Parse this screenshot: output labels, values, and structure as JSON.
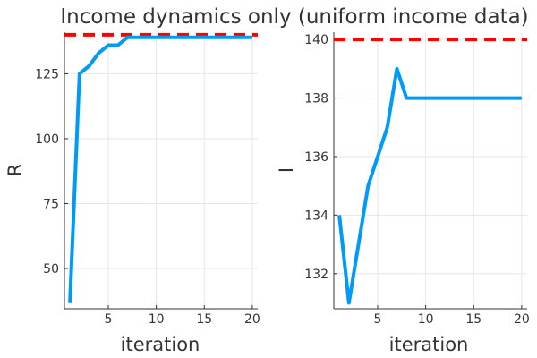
{
  "chart_data": {
    "title": "Income dynamics only (uniform income data)",
    "panels": [
      {
        "type": "line",
        "xlabel": "iteration",
        "ylabel": "R",
        "xlim": [
          0.43,
          20.57
        ],
        "ylim": [
          34.5,
          141
        ],
        "xticks": [
          5,
          10,
          15,
          20
        ],
        "yticks": [
          50,
          75,
          100,
          125
        ],
        "grid": true,
        "reference_line": {
          "y": 140,
          "color": "#ff0000",
          "style": "dashed"
        },
        "series": [
          {
            "color": "#009af9",
            "x": [
              1,
              2,
              3,
              4,
              5,
              6,
              7,
              8,
              9,
              10,
              11,
              12,
              13,
              14,
              15,
              16,
              17,
              18,
              19,
              20
            ],
            "values": [
              37,
              125,
              128,
              133,
              136,
              136,
              139,
              139,
              139,
              139,
              139,
              139,
              139,
              139,
              139,
              139,
              139,
              139,
              139,
              139
            ]
          }
        ]
      },
      {
        "type": "line",
        "xlabel": "iteration",
        "ylabel": "I",
        "xlim": [
          0.43,
          20.57
        ],
        "ylim": [
          130.8,
          140.25
        ],
        "xticks": [
          5,
          10,
          15,
          20
        ],
        "yticks": [
          132,
          134,
          136,
          138,
          140
        ],
        "grid": true,
        "reference_line": {
          "y": 140,
          "color": "#ff0000",
          "style": "dashed"
        },
        "series": [
          {
            "color": "#009af9",
            "x": [
              1,
              2,
              3,
              4,
              5,
              6,
              7,
              8,
              9,
              10,
              11,
              12,
              13,
              14,
              15,
              16,
              17,
              18,
              19,
              20
            ],
            "values": [
              134,
              131,
              133,
              135,
              136,
              137,
              139,
              138,
              138,
              138,
              138,
              138,
              138,
              138,
              138,
              138,
              138,
              138,
              138,
              138
            ]
          }
        ]
      }
    ]
  }
}
